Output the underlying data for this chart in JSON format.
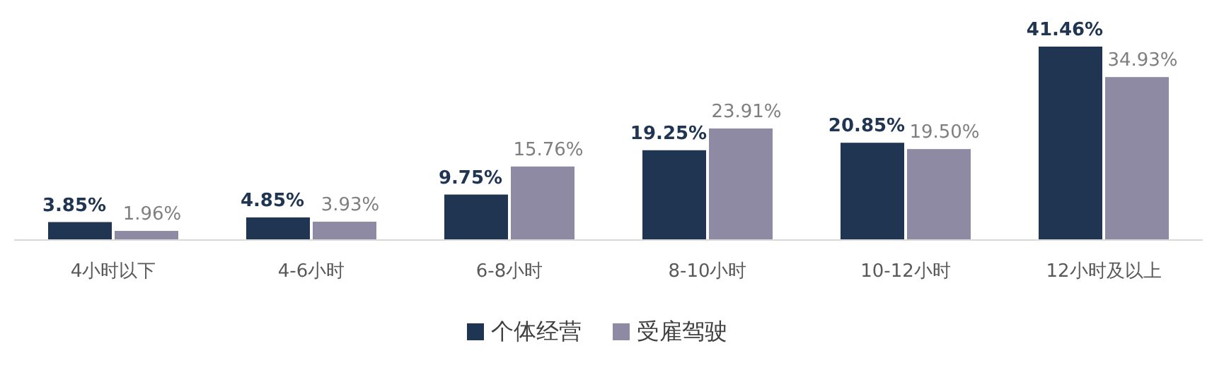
{
  "chart_data": {
    "type": "bar",
    "categories": [
      "4小时以下",
      "4-6小时",
      "6-8小时",
      "8-10小时",
      "10-12小时",
      "12小时及以上"
    ],
    "series": [
      {
        "name": "个体经营",
        "color": "#1f3552",
        "values": [
          3.85,
          4.85,
          9.75,
          19.25,
          20.85,
          41.46
        ],
        "value_labels": [
          "3.85%",
          "4.85%",
          "9.75%",
          "19.25%",
          "20.85%",
          "41.46%"
        ]
      },
      {
        "name": "受雇驾驶",
        "color": "#8e8aa3",
        "values": [
          1.96,
          3.93,
          15.76,
          23.91,
          19.5,
          34.93
        ],
        "value_labels": [
          "1.96%",
          "3.93%",
          "15.76%",
          "23.91%",
          "19.50%",
          "34.93%"
        ]
      }
    ],
    "legend": "bottom"
  }
}
